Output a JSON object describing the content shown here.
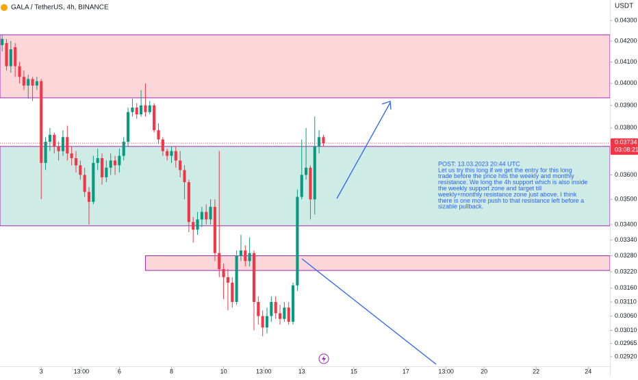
{
  "header": {
    "title": "GALA / TetherUS, 4h, BINANCE",
    "currency": "USDT"
  },
  "chart_data": {
    "type": "candlestick",
    "log_scale": true,
    "grid": false,
    "up_color": "#089981",
    "down_color": "#f23645",
    "xlim": [
      -0.5,
      140
    ],
    "xticks": [
      {
        "value": 9,
        "label": "3"
      },
      {
        "value": 18.25,
        "label": "13:00"
      },
      {
        "value": 27,
        "label": "6"
      },
      {
        "value": 39,
        "label": "8"
      },
      {
        "value": 51,
        "label": "10"
      },
      {
        "value": 60.25,
        "label": "13:00"
      },
      {
        "value": 69,
        "label": "13"
      },
      {
        "value": 81,
        "label": "15"
      },
      {
        "value": 93,
        "label": "17"
      },
      {
        "value": 102.25,
        "label": "13:00"
      },
      {
        "value": 111,
        "label": "20"
      },
      {
        "value": 123,
        "label": "22"
      },
      {
        "value": 135,
        "label": "24"
      }
    ],
    "ylim": [
      0.02888,
      0.04403
    ],
    "yticks": [
      {
        "value": 0.043,
        "label": "0.04300"
      },
      {
        "value": 0.042,
        "label": "0.04200"
      },
      {
        "value": 0.041,
        "label": "0.04100"
      },
      {
        "value": 0.04,
        "label": "0.04000"
      },
      {
        "value": 0.039,
        "label": "0.03900"
      },
      {
        "value": 0.038,
        "label": "0.03800"
      },
      {
        "value": 0.036,
        "label": "0.03600"
      },
      {
        "value": 0.035,
        "label": "0.03500"
      },
      {
        "value": 0.034,
        "label": "0.03400"
      },
      {
        "value": 0.0334,
        "label": "0.03340"
      },
      {
        "value": 0.0328,
        "label": "0.03280"
      },
      {
        "value": 0.0322,
        "label": "0.03220"
      },
      {
        "value": 0.0316,
        "label": "0.03160"
      },
      {
        "value": 0.0311,
        "label": "0.03110"
      },
      {
        "value": 0.0306,
        "label": "0.03060"
      },
      {
        "value": 0.0301,
        "label": "0.03010"
      },
      {
        "value": 0.02965,
        "label": "0.02965"
      },
      {
        "value": 0.0292,
        "label": "0.02920"
      }
    ],
    "open": [
      0.0418,
      0.0419,
      0.0408,
      0.0417,
      0.0408,
      0.0403,
      0.0399,
      0.0402,
      0.0399,
      0.0401,
      0.0365,
      0.0374,
      0.0377,
      0.0372,
      0.037,
      0.0376,
      0.0369,
      0.0367,
      0.0364,
      0.036,
      0.0353,
      0.0349,
      0.0365,
      0.0367,
      0.0359,
      0.0363,
      0.0366,
      0.0364,
      0.0368,
      0.0374,
      0.0387,
      0.0389,
      0.0386,
      0.039,
      0.0387,
      0.039,
      0.0379,
      0.0375,
      0.037,
      0.0368,
      0.037,
      0.0366,
      0.0362,
      0.0357,
      0.0341,
      0.0338,
      0.0342,
      0.0345,
      0.0342,
      0.0347,
      0.0329,
      0.0323,
      0.032,
      0.0318,
      0.0311,
      0.0328,
      0.033,
      0.0326,
      0.0329,
      0.0311,
      0.0306,
      0.0302,
      0.0306,
      0.0311,
      0.0307,
      0.0305,
      0.0309,
      0.0304,
      0.0317,
      0.0351,
      0.036,
      0.0363,
      0.035,
      0.0372,
      0.0376
    ],
    "high": [
      0.0423,
      0.0421,
      0.042,
      0.0419,
      0.041,
      0.0406,
      0.0404,
      0.0403,
      0.0403,
      0.0402,
      0.0376,
      0.038,
      0.0378,
      0.0374,
      0.0379,
      0.0381,
      0.0372,
      0.037,
      0.0366,
      0.0363,
      0.0355,
      0.0368,
      0.0371,
      0.0369,
      0.0366,
      0.0369,
      0.0368,
      0.0371,
      0.0376,
      0.0389,
      0.0393,
      0.0391,
      0.0397,
      0.04,
      0.0392,
      0.0391,
      0.0382,
      0.0376,
      0.0371,
      0.0372,
      0.0372,
      0.037,
      0.0364,
      0.0358,
      0.0343,
      0.0345,
      0.0347,
      0.0348,
      0.035,
      0.035,
      0.037,
      0.0325,
      0.0323,
      0.032,
      0.033,
      0.0336,
      0.0332,
      0.0335,
      0.033,
      0.0313,
      0.0308,
      0.0309,
      0.0313,
      0.0313,
      0.031,
      0.0311,
      0.0311,
      0.0318,
      0.0354,
      0.0375,
      0.038,
      0.0364,
      0.0385,
      0.0379,
      0.0377
    ],
    "low": [
      0.0415,
      0.0406,
      0.0405,
      0.0403,
      0.04,
      0.0397,
      0.0393,
      0.0392,
      0.0397,
      0.035,
      0.0362,
      0.037,
      0.0369,
      0.0366,
      0.0368,
      0.0366,
      0.0364,
      0.0361,
      0.0358,
      0.0351,
      0.034,
      0.0348,
      0.0362,
      0.0356,
      0.0357,
      0.036,
      0.036,
      0.0361,
      0.0366,
      0.0372,
      0.0385,
      0.0384,
      0.0385,
      0.0385,
      0.0386,
      0.0378,
      0.0373,
      0.0368,
      0.0366,
      0.0365,
      0.0363,
      0.0359,
      0.035,
      0.0337,
      0.0333,
      0.0336,
      0.0339,
      0.034,
      0.034,
      0.0326,
      0.032,
      0.0312,
      0.0308,
      0.0309,
      0.031,
      0.0326,
      0.0324,
      0.0324,
      0.0301,
      0.0303,
      0.0299,
      0.03,
      0.0304,
      0.0305,
      0.0303,
      0.0304,
      0.0303,
      0.0303,
      0.0315,
      0.035,
      0.0358,
      0.0342,
      0.0344,
      0.0369,
      0.0372
    ],
    "close": [
      0.0421,
      0.0408,
      0.0416,
      0.0408,
      0.0403,
      0.0399,
      0.0402,
      0.0399,
      0.0401,
      0.0365,
      0.0374,
      0.0377,
      0.0372,
      0.037,
      0.0376,
      0.0369,
      0.0367,
      0.0364,
      0.036,
      0.0353,
      0.0349,
      0.0365,
      0.0367,
      0.0359,
      0.0363,
      0.0366,
      0.0364,
      0.0368,
      0.0374,
      0.0387,
      0.0389,
      0.0386,
      0.039,
      0.0387,
      0.039,
      0.0379,
      0.0375,
      0.037,
      0.0368,
      0.037,
      0.0366,
      0.0362,
      0.0357,
      0.0341,
      0.0338,
      0.0342,
      0.0345,
      0.0342,
      0.0347,
      0.0329,
      0.0323,
      0.032,
      0.0318,
      0.0311,
      0.0328,
      0.033,
      0.0326,
      0.0329,
      0.0311,
      0.0306,
      0.0302,
      0.0306,
      0.0311,
      0.0307,
      0.0305,
      0.0309,
      0.0304,
      0.0317,
      0.0351,
      0.036,
      0.0363,
      0.035,
      0.0372,
      0.0376,
      0.03734
    ],
    "zones": [
      {
        "top": 0.0423,
        "bottom": 0.03934,
        "color": "#f23645"
      },
      {
        "top": 0.0372,
        "bottom": 0.03395,
        "color": "#089981"
      },
      {
        "top": 0.0328,
        "bottom": 0.03225,
        "start": 33,
        "color": "#f23645"
      }
    ],
    "current_price": {
      "value": 0.03734,
      "label": "0.03734",
      "countdown": "03:08:21"
    },
    "annotation": [
      "POST: 13.03.2023 20:44 UTC",
      "Let us try this long if we get the entry for this long",
      "trade before the price hits the weekly and monthly",
      "resistance. We long the 4h support which is also inside",
      "the weekly support zone and target till",
      "weekly+monthly resistance zone just above. I think",
      "there is one more push to that resistance left before a",
      "sizable pullback."
    ]
  }
}
